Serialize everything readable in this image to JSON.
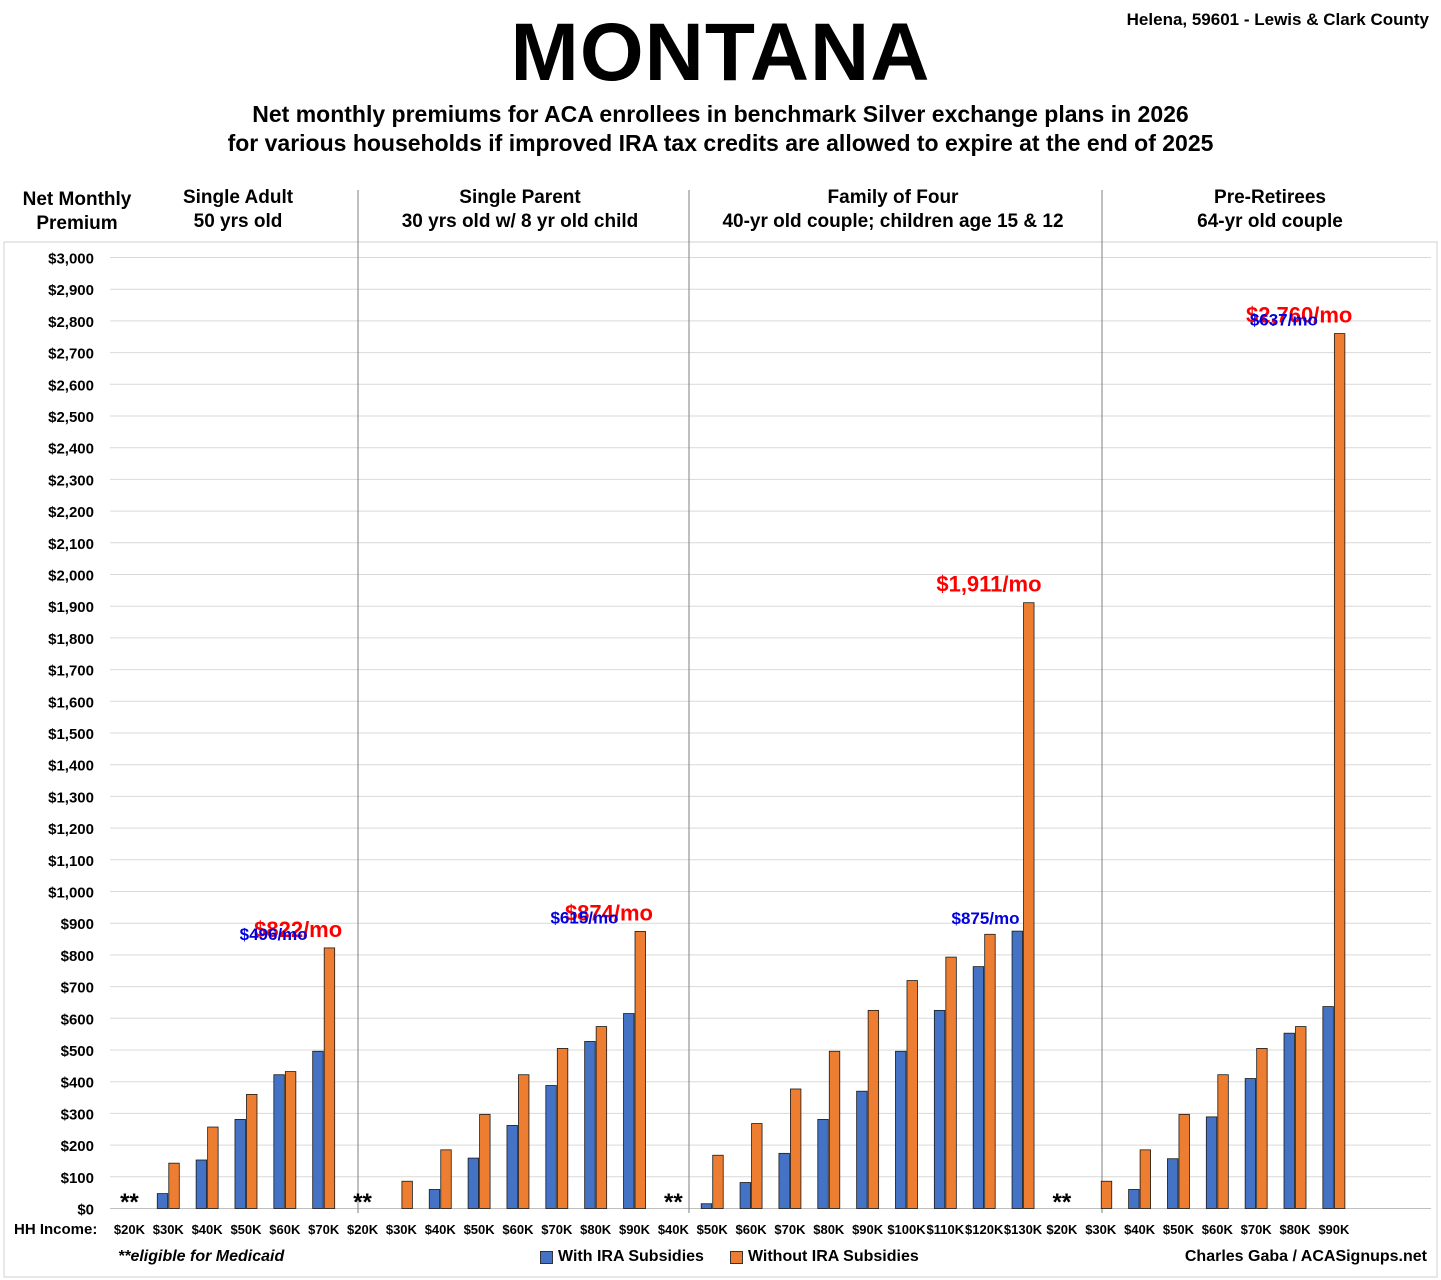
{
  "header": {
    "title": "MONTANA",
    "location": "Helena, 59601 - Lewis & Clark County",
    "subtitle_line1": "Net monthly premiums for ACA enrollees in benchmark Silver exchange plans in 2026",
    "subtitle_line2": "for various households if improved IRA tax credits are allowed to expire at the end of 2025"
  },
  "axis": {
    "y_label_line1": "Net Monthly",
    "y_label_line2": "Premium",
    "x_label": "HH Income:"
  },
  "footer": {
    "note": "**eligible for Medicaid",
    "credit": "Charles Gaba / ACASignups.net"
  },
  "colors": {
    "with": "#4472C4",
    "without": "#ED7D31",
    "red_label": "#FF0000",
    "blue_label": "#0000E0",
    "grid": "#d9d9d9"
  },
  "chart_data": {
    "type": "bar",
    "ylim": [
      0,
      3000
    ],
    "ytick_step": 100,
    "grid": true,
    "legend_position": "bottom",
    "series": [
      {
        "name": "With IRA Subsidies"
      },
      {
        "name": "Without IRA Subsidies"
      }
    ],
    "groups": [
      {
        "title_line1": "Single Adult",
        "title_line2": "50 yrs old",
        "categories": [
          "$20K",
          "$30K",
          "$40K",
          "$50K",
          "$60K",
          "$70K"
        ],
        "with": [
          null,
          47,
          153,
          281,
          422,
          496
        ],
        "without": [
          null,
          143,
          257,
          360,
          432,
          822
        ],
        "medicaid_marker": "**",
        "label_with": "$496/mo",
        "label_without": "$822/mo"
      },
      {
        "title_line1": "Single Parent",
        "title_line2": "30 yrs old w/ 8 yr old child",
        "categories": [
          "$20K",
          "$30K",
          "$40K",
          "$50K",
          "$60K",
          "$70K",
          "$80K",
          "$90K"
        ],
        "with": [
          null,
          0,
          60,
          159,
          262,
          388,
          527,
          615
        ],
        "without": [
          null,
          86,
          185,
          297,
          422,
          505,
          574,
          874
        ],
        "medicaid_marker": "**",
        "label_with": "$615/mo",
        "label_without": "$874/mo"
      },
      {
        "title_line1": "Family of Four",
        "title_line2": "40-yr old couple; children age 15 & 12",
        "categories": [
          "$40K",
          "$50K",
          "$60K",
          "$70K",
          "$80K",
          "$90K",
          "$100K",
          "$110K",
          "$120K",
          "$130K"
        ],
        "with": [
          null,
          15,
          82,
          174,
          281,
          370,
          496,
          625,
          763,
          875
        ],
        "without": [
          null,
          168,
          268,
          377,
          496,
          625,
          719,
          793,
          865,
          1911
        ],
        "medicaid_marker": "**",
        "label_with": "$875/mo",
        "label_without": "$1,911/mo"
      },
      {
        "title_line1": "Pre-Retirees",
        "title_line2": "64-yr old couple",
        "categories": [
          "$20K",
          "$30K",
          "$40K",
          "$50K",
          "$60K",
          "$70K",
          "$80K",
          "$90K"
        ],
        "with": [
          null,
          0,
          60,
          157,
          289,
          410,
          553,
          637
        ],
        "without": [
          null,
          86,
          185,
          297,
          422,
          505,
          574,
          2760
        ],
        "medicaid_marker": "**",
        "label_with": "$637/mo",
        "label_without": "$2,760/mo"
      }
    ]
  }
}
